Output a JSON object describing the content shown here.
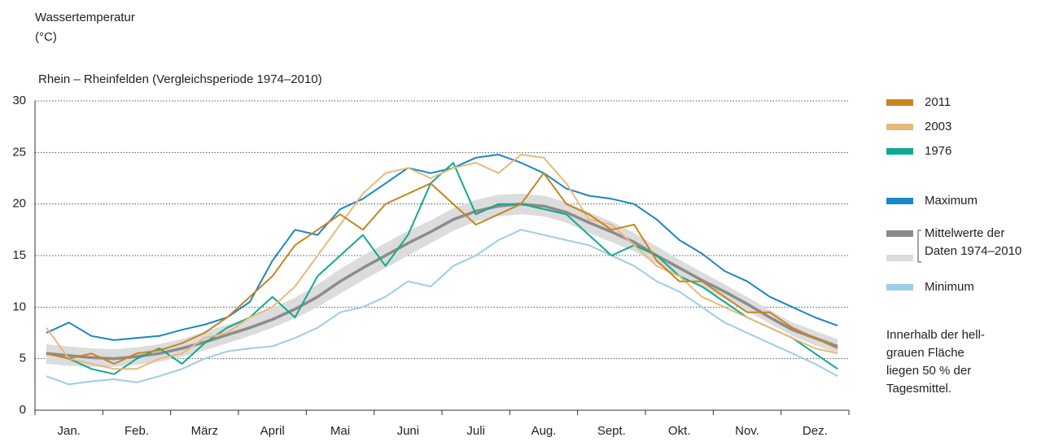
{
  "chart_data": {
    "type": "line",
    "title": "Wassertemperatur",
    "y_label": "(°C)",
    "subtitle": "Rhein – Rheinfelden (Vergleichsperiode 1974–2010)",
    "categories": [
      null,
      "Jan.",
      null,
      null,
      "Feb.",
      null,
      null,
      "März",
      null,
      null,
      "April",
      null,
      null,
      "Mai",
      null,
      null,
      "Juni",
      null,
      null,
      "Juli",
      null,
      null,
      "Aug.",
      null,
      null,
      "Sept.",
      null,
      null,
      "Okt.",
      null,
      null,
      "Nov.",
      null,
      null,
      "Dez.",
      null
    ],
    "ylim": [
      0,
      30
    ],
    "yticks": [
      0,
      5,
      10,
      15,
      20,
      25,
      30
    ],
    "grid": true,
    "band": {
      "color": "#dcdcdc",
      "lower": [
        4.5,
        4.3,
        4.2,
        4.2,
        4.4,
        4.7,
        5.2,
        5.8,
        6.5,
        7.2,
        8.0,
        8.9,
        10.0,
        11.3,
        12.6,
        13.8,
        15.0,
        16.2,
        17.4,
        18.3,
        18.8,
        19.0,
        18.8,
        18.2,
        17.2,
        16.3,
        15.4,
        14.2,
        13.0,
        11.9,
        10.8,
        9.6,
        8.4,
        7.2,
        6.3,
        5.5
      ],
      "upper": [
        6.4,
        6.2,
        6.0,
        5.9,
        6.1,
        6.4,
        6.9,
        7.6,
        8.3,
        9.0,
        9.9,
        10.9,
        12.2,
        13.7,
        15.0,
        16.2,
        17.4,
        18.4,
        19.6,
        20.4,
        20.9,
        21.0,
        20.8,
        20.2,
        19.2,
        18.3,
        17.2,
        15.9,
        14.6,
        13.4,
        12.2,
        11.0,
        9.7,
        8.5,
        7.7,
        6.9
      ]
    },
    "series": [
      {
        "name": "2011",
        "color": "#c8841f",
        "values": [
          5.5,
          5,
          5.5,
          4.5,
          5.5,
          5.8,
          6.5,
          7.5,
          9,
          11,
          13,
          16,
          17.5,
          19,
          17.5,
          20,
          21,
          22,
          20,
          18,
          19,
          20,
          23,
          20,
          19,
          17.5,
          18,
          14.5,
          12.5,
          12.5,
          11,
          9.5,
          9.5,
          8,
          7,
          6
        ]
      },
      {
        "name": "2003",
        "color": "#e8b97c",
        "values": [
          8,
          5,
          4.5,
          4,
          4,
          5,
          5.5,
          7,
          7.5,
          9,
          10,
          12,
          15,
          18,
          21,
          23,
          23.5,
          22.5,
          23.5,
          24,
          23,
          24.8,
          24.5,
          22,
          18.5,
          18,
          16,
          14,
          13,
          11,
          10,
          9,
          8,
          7,
          6,
          5.5
        ]
      },
      {
        "name": "1976",
        "color": "#12a98e",
        "values": [
          5.5,
          5,
          4,
          3.5,
          5,
          6,
          4.5,
          6.5,
          8,
          9,
          11,
          9,
          13,
          15,
          17,
          14,
          17,
          22,
          24,
          19,
          20,
          20,
          19.5,
          19,
          17,
          15,
          16,
          15,
          13,
          12,
          10.5,
          9,
          8,
          7,
          5.5,
          4
        ]
      },
      {
        "name": "Maximum",
        "color": "#1a86c8",
        "values": [
          7.5,
          8.5,
          7.2,
          6.8,
          7,
          7.2,
          7.8,
          8.3,
          9,
          10.5,
          14.5,
          17.5,
          17,
          19.5,
          20.5,
          22,
          23.5,
          23,
          23.5,
          24.5,
          24.8,
          24,
          23,
          21.5,
          20.8,
          20.5,
          20,
          18.5,
          16.5,
          15.2,
          13.5,
          12.5,
          11,
          10,
          9,
          8.2
        ]
      },
      {
        "name": "Mittelwerte der Daten 1974–2010",
        "color": "#8c8c8c",
        "values": [
          5.5,
          5.3,
          5.1,
          5.0,
          5.2,
          5.5,
          6.0,
          6.6,
          7.3,
          8.0,
          8.8,
          9.8,
          11.0,
          12.5,
          13.8,
          15.0,
          16.2,
          17.3,
          18.5,
          19.3,
          19.8,
          20.0,
          19.8,
          19.2,
          18.2,
          17.3,
          16.3,
          15.0,
          13.8,
          12.6,
          11.5,
          10.3,
          9.0,
          7.8,
          7.0,
          6.2
        ]
      },
      {
        "name": "Minimum",
        "color": "#9dcde6",
        "values": [
          3.3,
          2.5,
          2.8,
          3.0,
          2.7,
          3.3,
          4.0,
          5.0,
          5.7,
          6.0,
          6.2,
          7.0,
          8.0,
          9.5,
          10,
          11,
          12.5,
          12,
          14,
          15,
          16.5,
          17.5,
          17,
          16.5,
          16,
          15,
          14,
          12.5,
          11.5,
          10,
          8.5,
          7.5,
          6.5,
          5.5,
          4.5,
          3.3
        ]
      }
    ],
    "note": [
      "Innerhalb der hell-",
      "grauen Fläche",
      "liegen 50 % der",
      "Tagesmittel."
    ]
  }
}
